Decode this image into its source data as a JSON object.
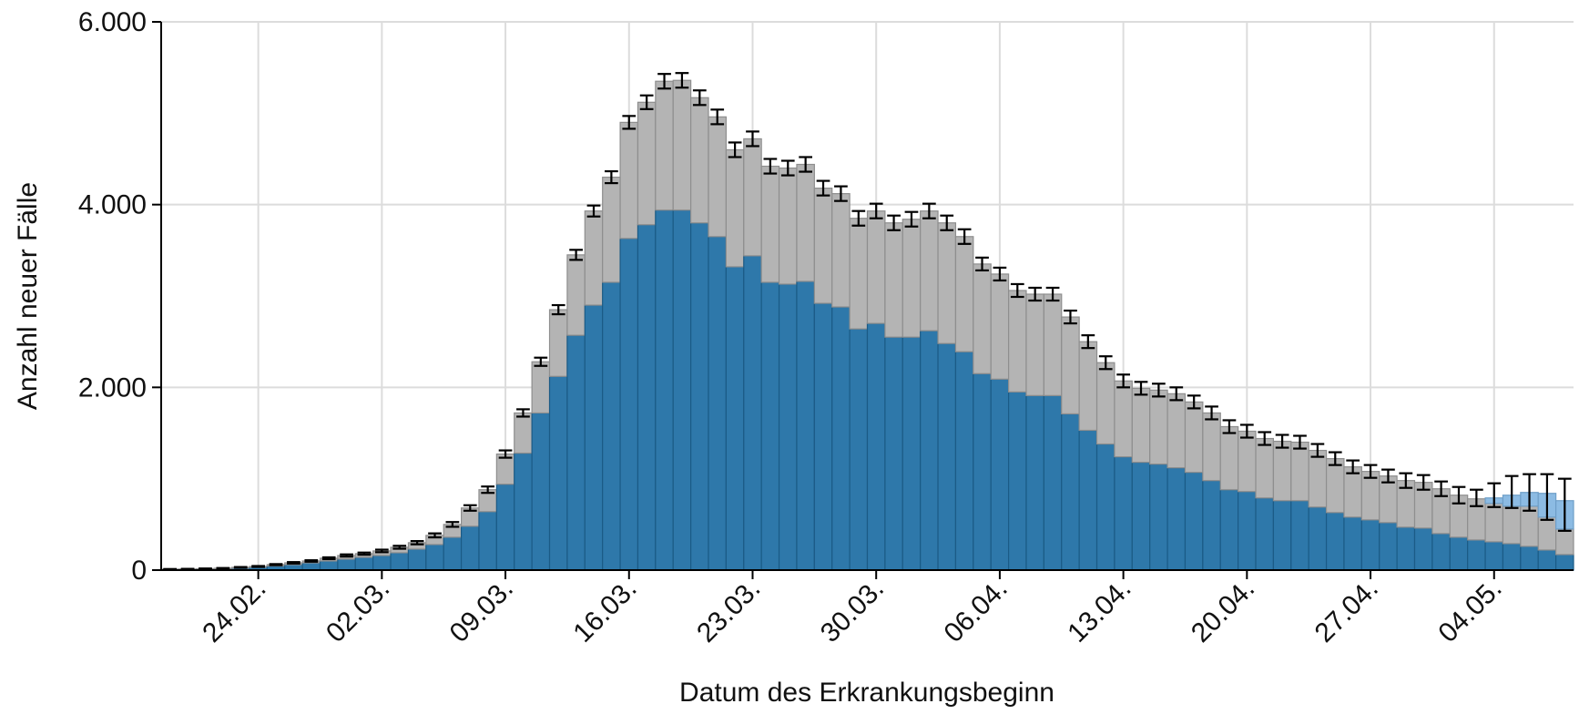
{
  "chart_data": {
    "type": "stacked_bar",
    "y_label": "Anzahl neuer Fälle",
    "x_label": "Datum des Erkrankungsbeginn",
    "categories": [
      null,
      null,
      null,
      null,
      null,
      "24.02.",
      null,
      null,
      null,
      null,
      null,
      null,
      "02.03.",
      null,
      null,
      null,
      null,
      null,
      null,
      "09.03.",
      null,
      null,
      null,
      null,
      null,
      null,
      "16.03.",
      null,
      null,
      null,
      null,
      null,
      null,
      "23.03.",
      null,
      null,
      null,
      null,
      null,
      null,
      "30.03.",
      null,
      null,
      null,
      null,
      null,
      null,
      "06.04.",
      null,
      null,
      null,
      null,
      null,
      null,
      "13.04.",
      null,
      null,
      null,
      null,
      null,
      null,
      "20.04.",
      null,
      null,
      null,
      null,
      null,
      null,
      "27.04.",
      null,
      null,
      null,
      null,
      null,
      null,
      "04.05.",
      null,
      null,
      null,
      null
    ],
    "series": [
      {
        "color": "#2e78aa",
        "edge": "#1b5b86",
        "values": [
          5,
          8,
          10,
          15,
          20,
          30,
          45,
          60,
          80,
          100,
          120,
          140,
          160,
          190,
          230,
          280,
          360,
          480,
          640,
          940,
          1280,
          1720,
          2120,
          2570,
          2900,
          3150,
          3630,
          3780,
          3940,
          3940,
          3800,
          3650,
          3320,
          3440,
          3150,
          3130,
          3160,
          2920,
          2880,
          2640,
          2700,
          2550,
          2550,
          2620,
          2480,
          2390,
          2150,
          2090,
          1950,
          1910,
          1910,
          1710,
          1530,
          1380,
          1240,
          1180,
          1160,
          1120,
          1070,
          980,
          880,
          860,
          790,
          760,
          760,
          690,
          630,
          580,
          550,
          520,
          470,
          460,
          400,
          360,
          330,
          310,
          290,
          260,
          220,
          170
        ]
      },
      {
        "color": "#b4b4b4",
        "edge": "#8e8e8e",
        "values": [
          5,
          4,
          5,
          5,
          10,
          10,
          15,
          20,
          20,
          30,
          40,
          40,
          50,
          60,
          70,
          100,
          140,
          200,
          240,
          330,
          440,
          560,
          730,
          880,
          1030,
          1150,
          1270,
          1340,
          1410,
          1420,
          1370,
          1310,
          1280,
          1280,
          1270,
          1270,
          1280,
          1260,
          1240,
          1210,
          1230,
          1250,
          1290,
          1310,
          1320,
          1260,
          1200,
          1150,
          1110,
          1110,
          1110,
          1060,
          970,
          890,
          830,
          810,
          810,
          810,
          770,
          740,
          690,
          660,
          650,
          650,
          640,
          620,
          590,
          550,
          530,
          510,
          510,
          500,
          490,
          460,
          450,
          420,
          410,
          440,
          360,
          280
        ]
      },
      {
        "color": "#8cbbe3",
        "edge": "#6f9fc8",
        "values": [
          0,
          0,
          0,
          0,
          0,
          0,
          0,
          0,
          0,
          0,
          0,
          0,
          0,
          0,
          0,
          0,
          0,
          0,
          0,
          0,
          0,
          0,
          0,
          0,
          0,
          0,
          0,
          0,
          0,
          0,
          0,
          0,
          0,
          0,
          0,
          0,
          0,
          0,
          0,
          0,
          0,
          0,
          0,
          0,
          0,
          0,
          0,
          0,
          0,
          0,
          0,
          0,
          0,
          0,
          0,
          0,
          0,
          0,
          0,
          0,
          0,
          0,
          0,
          0,
          0,
          0,
          0,
          0,
          0,
          0,
          0,
          0,
          0,
          0,
          0,
          60,
          120,
          150,
          260,
          310
        ]
      }
    ],
    "error_bars": {
      "color": "#000000",
      "lower": [
        8,
        10,
        12,
        17,
        26,
        35,
        54,
        72,
        92,
        120,
        148,
        168,
        196,
        234,
        282,
        358,
        474,
        650,
        845,
        1230,
        1680,
        2235,
        2800,
        3395,
        3870,
        4235,
        4830,
        5045,
        5270,
        5280,
        5090,
        4880,
        4520,
        4640,
        4340,
        4320,
        4360,
        4100,
        4040,
        3770,
        3850,
        3720,
        3760,
        3850,
        3720,
        3570,
        3280,
        3170,
        2990,
        2950,
        2950,
        2700,
        2430,
        2200,
        2000,
        1920,
        1900,
        1860,
        1770,
        1650,
        1500,
        1450,
        1370,
        1340,
        1330,
        1240,
        1150,
        1060,
        1010,
        960,
        900,
        880,
        810,
        730,
        700,
        690,
        680,
        650,
        550,
        430
      ],
      "upper": [
        12,
        14,
        18,
        23,
        34,
        45,
        66,
        88,
        108,
        140,
        172,
        192,
        224,
        266,
        318,
        402,
        526,
        710,
        915,
        1310,
        1760,
        2325,
        2900,
        3505,
        3990,
        4365,
        4970,
        5195,
        5430,
        5440,
        5250,
        5040,
        4680,
        4800,
        4500,
        4480,
        4520,
        4260,
        4200,
        3930,
        4010,
        3880,
        3920,
        4010,
        3880,
        3730,
        3420,
        3310,
        3130,
        3090,
        3090,
        2840,
        2570,
        2340,
        2140,
        2060,
        2040,
        2000,
        1910,
        1790,
        1640,
        1590,
        1510,
        1480,
        1470,
        1380,
        1290,
        1200,
        1150,
        1100,
        1060,
        1040,
        970,
        910,
        880,
        950,
        1030,
        1050,
        1050,
        1000
      ]
    },
    "ylim": [
      0,
      6000
    ],
    "yticks": [
      0,
      {
        "value": 2000,
        "label": "2.000"
      },
      {
        "value": 4000,
        "label": "4.000"
      },
      {
        "value": 6000,
        "label": "6.000"
      }
    ],
    "grid": true
  }
}
